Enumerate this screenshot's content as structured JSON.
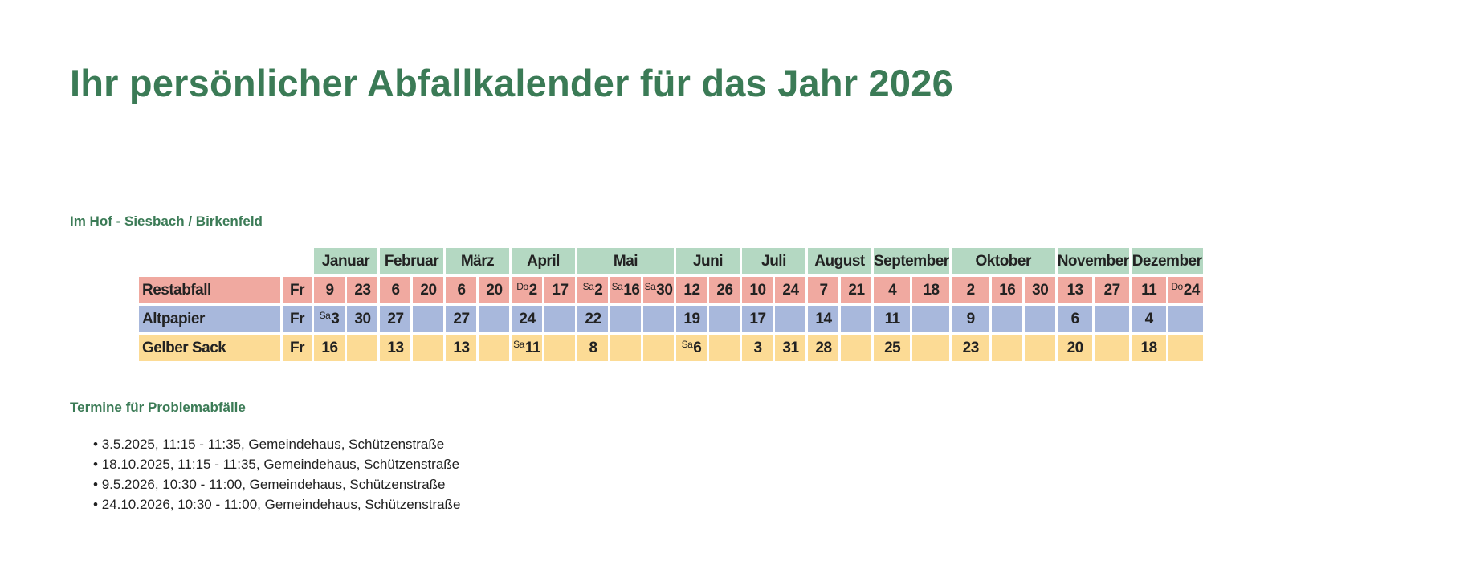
{
  "title": "Ihr persönlicher Abfallkalender für das Jahr 2026",
  "location": "Im Hof - Siesbach / Birkenfeld",
  "months": [
    "Januar",
    "Februar",
    "März",
    "April",
    "Mai",
    "Juni",
    "Juli",
    "August",
    "September",
    "Oktober",
    "November",
    "Dezember"
  ],
  "rows": [
    {
      "label": "Restabfall",
      "day": "Fr",
      "cells": [
        [
          "",
          "9"
        ],
        [
          "",
          "23"
        ],
        [
          "",
          "6"
        ],
        [
          "",
          "20"
        ],
        [
          "",
          "6"
        ],
        [
          "",
          "20"
        ],
        [
          "Do",
          "2"
        ],
        [
          "",
          "17"
        ],
        [
          "Sa",
          "2"
        ],
        [
          "Sa",
          "16"
        ],
        [
          "Sa",
          "30"
        ],
        [
          "",
          "12"
        ],
        [
          "",
          "26"
        ],
        [
          "",
          "10"
        ],
        [
          "",
          "24"
        ],
        [
          "",
          "7"
        ],
        [
          "",
          "21"
        ],
        [
          "",
          "4"
        ],
        [
          "",
          "18"
        ],
        [
          "",
          "2"
        ],
        [
          "",
          "16"
        ],
        [
          "",
          "30"
        ],
        [
          "",
          "13"
        ],
        [
          "",
          "27"
        ],
        [
          "",
          "11"
        ],
        [
          "Do",
          "24"
        ]
      ]
    },
    {
      "label": "Altpapier",
      "day": "Fr",
      "cells": [
        [
          "Sa",
          "3"
        ],
        [
          "",
          "30"
        ],
        [
          "",
          "27"
        ],
        [
          "",
          ""
        ],
        [
          "",
          "27"
        ],
        [
          "",
          ""
        ],
        [
          "",
          "24"
        ],
        [
          "",
          ""
        ],
        [
          "",
          "22"
        ],
        [
          "",
          ""
        ],
        [
          "",
          ""
        ],
        [
          "",
          "19"
        ],
        [
          "",
          ""
        ],
        [
          "",
          "17"
        ],
        [
          "",
          ""
        ],
        [
          "",
          "14"
        ],
        [
          "",
          ""
        ],
        [
          "",
          "11"
        ],
        [
          "",
          ""
        ],
        [
          "",
          "9"
        ],
        [
          "",
          ""
        ],
        [
          "",
          ""
        ],
        [
          "",
          "6"
        ],
        [
          "",
          ""
        ],
        [
          "",
          "4"
        ],
        [
          "",
          ""
        ]
      ]
    },
    {
      "label": "Gelber Sack",
      "day": "Fr",
      "cells": [
        [
          "",
          "16"
        ],
        [
          "",
          ""
        ],
        [
          "",
          "13"
        ],
        [
          "",
          ""
        ],
        [
          "",
          "13"
        ],
        [
          "",
          ""
        ],
        [
          "Sa",
          "11"
        ],
        [
          "",
          ""
        ],
        [
          "",
          "8"
        ],
        [
          "",
          ""
        ],
        [
          "",
          ""
        ],
        [
          "Sa",
          "6"
        ],
        [
          "",
          ""
        ],
        [
          "",
          "3"
        ],
        [
          "",
          "31"
        ],
        [
          "",
          "28"
        ],
        [
          "",
          ""
        ],
        [
          "",
          "25"
        ],
        [
          "",
          ""
        ],
        [
          "",
          "23"
        ],
        [
          "",
          ""
        ],
        [
          "",
          ""
        ],
        [
          "",
          "20"
        ],
        [
          "",
          ""
        ],
        [
          "",
          "18"
        ],
        [
          "",
          ""
        ]
      ]
    }
  ],
  "problem_title": "Termine für Problemabfälle",
  "problem_dates": [
    "3.5.2025, 11:15 - 11:35, Gemeindehaus, Schützenstraße",
    "18.10.2025, 11:15 - 11:35, Gemeindehaus, Schützenstraße",
    "9.5.2026, 10:30 - 11:00, Gemeindehaus, Schützenstraße",
    "24.10.2026, 10:30 - 11:00, Gemeindehaus, Schützenstraße"
  ]
}
